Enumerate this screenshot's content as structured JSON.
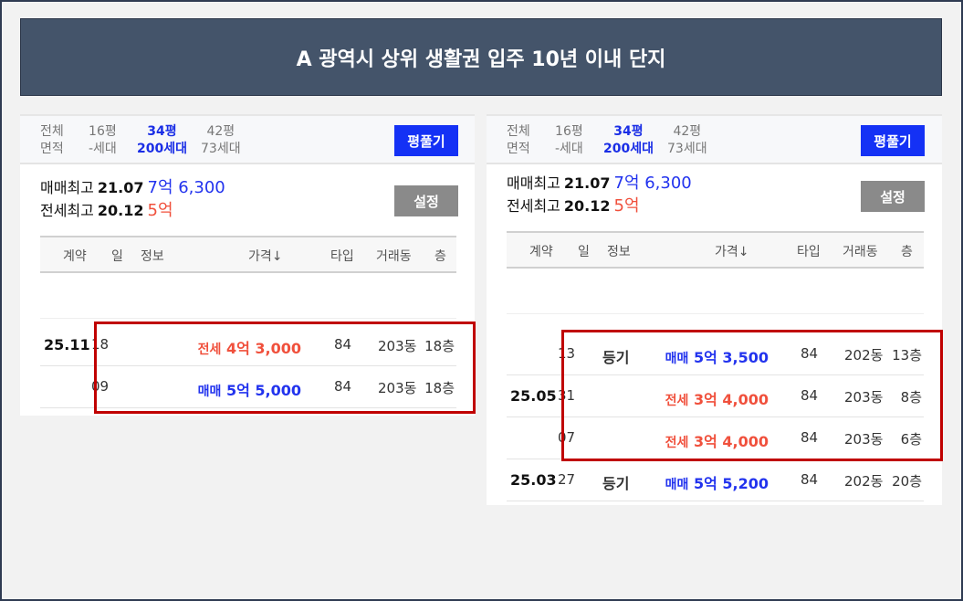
{
  "title": "A 광역시 상위 생활권 입주 10년 이내 단지",
  "filter": {
    "all_label1": "전체",
    "all_label2": "면적",
    "sizes": [
      {
        "pyeong": "16평",
        "units": "-세대"
      },
      {
        "pyeong": "34평",
        "units": "200세대",
        "selected": true
      },
      {
        "pyeong": "42평",
        "units": "73세대"
      }
    ],
    "button": "평풀기"
  },
  "summary": {
    "sale_label": "매매최고",
    "sale_date": "21.07",
    "sale_price": "7억 6,300",
    "jeonse_label": "전세최고",
    "jeonse_date": "20.12",
    "jeonse_price": "5억",
    "settings_button": "설정"
  },
  "columns": [
    "계약",
    "일",
    "정보",
    "가격↓",
    "타입",
    "거래동",
    "층"
  ],
  "colors": {
    "sale": "#2233ee",
    "jeonse": "#f0503c",
    "highlight": "#c00000",
    "header": "#44546a"
  },
  "left_table": [
    {
      "ym": "25.11",
      "day": "18",
      "info": "",
      "kind": "전세",
      "price": "4억 3,000",
      "type": "84",
      "dong": "203동",
      "floor": "18층"
    },
    {
      "ym": "",
      "day": "09",
      "info": "",
      "kind": "매매",
      "price": "5억 5,000",
      "type": "84",
      "dong": "203동",
      "floor": "18층"
    }
  ],
  "right_table": [
    {
      "ym": "",
      "day": "13",
      "info": "등기",
      "kind": "매매",
      "price": "5억 3,500",
      "type": "84",
      "dong": "202동",
      "floor": "13층"
    },
    {
      "ym": "25.05",
      "day": "31",
      "info": "",
      "kind": "전세",
      "price": "3억 4,000",
      "type": "84",
      "dong": "203동",
      "floor": "8층"
    },
    {
      "ym": "",
      "day": "07",
      "info": "",
      "kind": "전세",
      "price": "3억 4,000",
      "type": "84",
      "dong": "203동",
      "floor": "6층"
    },
    {
      "ym": "25.03",
      "day": "27",
      "info": "등기",
      "kind": "매매",
      "price": "5억 5,200",
      "type": "84",
      "dong": "202동",
      "floor": "20층"
    }
  ]
}
